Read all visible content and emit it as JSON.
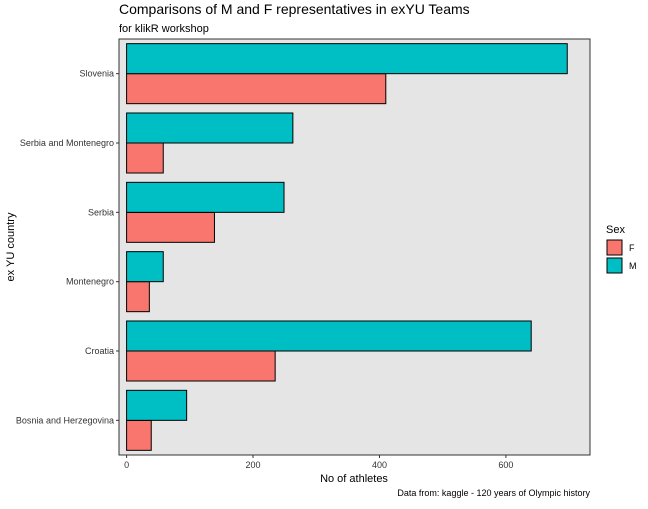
{
  "chart_data": {
    "type": "bar",
    "orientation": "horizontal",
    "title": "Comparisons of M and F representatives in exYU Teams",
    "subtitle": "for klikR workshop",
    "caption": "Data from: kaggle - 120 years of Olympic history",
    "xlabel": "No of athletes",
    "ylabel": "ex YU country",
    "xlim": [
      -12,
      733
    ],
    "xticks": [
      "0",
      "200",
      "400",
      "600"
    ],
    "xtick_values": [
      0,
      200,
      400,
      600
    ],
    "grid": false,
    "legend": {
      "title": "Sex",
      "placement": "right"
    },
    "categories": [
      "Slovenia",
      "Serbia and Montenegro",
      "Serbia",
      "Montenegro",
      "Croatia",
      "Bosnia and Herzegovina"
    ],
    "series": [
      {
        "name": "F",
        "color": "#F8766D",
        "values": [
          410,
          58,
          139,
          36,
          235,
          39
        ]
      },
      {
        "name": "M",
        "color": "#00BFC4",
        "values": [
          697,
          263,
          249,
          58,
          640,
          95
        ]
      }
    ]
  }
}
